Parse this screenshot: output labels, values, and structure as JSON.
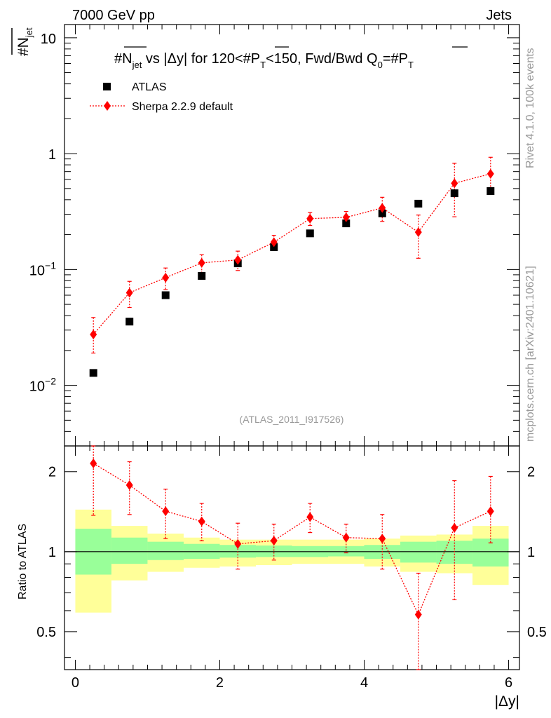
{
  "header": {
    "left": "7000 GeV pp",
    "right": "Jets"
  },
  "side_text": {
    "rivet": "Rivet 4.1.0,  100k events",
    "mcplots": "mcplots.cern.ch [arXiv:2401.10621]"
  },
  "colors": {
    "atlas": "#000000",
    "mc": "#ff0000",
    "band_inner": "#99ff99",
    "band_outer": "#ffff99"
  },
  "chart_data": [
    {
      "type": "scatter",
      "title": "#N_jet vs |Δy| for 120<#P_T<150, Fwd/Bwd Q0=#P_T",
      "title_parts": {
        "a": "#N",
        "a_sub": "jet",
        "b": " vs |Δy|  for 120<#P",
        "b_sub": "T",
        "c": "<150, Fwd/Bwd Q",
        "c_sub": "0",
        "d": "=#P",
        "d_sub": "T"
      },
      "ylabel": "#N_jet",
      "ylabel_parts": {
        "main": "#N",
        "sub": "jet"
      },
      "yscale": "log",
      "ylim": [
        0.003,
        13
      ],
      "xlim": [
        -0.15,
        6.15
      ],
      "y_ticks": [
        {
          "v": 0.01,
          "base": "10",
          "exp": "−2"
        },
        {
          "v": 0.1,
          "base": "10",
          "exp": "−1"
        },
        {
          "v": 1,
          "base": "1",
          "exp": ""
        },
        {
          "v": 10,
          "base": "10",
          "exp": ""
        }
      ],
      "watermark": "(ATLAS_2011_I917526)",
      "legend": {
        "placement": "top-left",
        "atlas": "ATLAS",
        "mc": "Sherpa 2.2.9 default"
      },
      "x": [
        0.25,
        0.75,
        1.25,
        1.75,
        2.25,
        2.75,
        3.25,
        3.75,
        4.25,
        4.75,
        5.25,
        5.75
      ],
      "bin_half_width": 0.25,
      "series": [
        {
          "name": "ATLAS",
          "values": [
            0.0128,
            0.0355,
            0.06,
            0.088,
            0.113,
            0.156,
            0.205,
            0.25,
            0.305,
            0.37,
            0.455,
            0.475
          ]
        },
        {
          "name": "Sherpa 2.2.9 default",
          "values": [
            0.0275,
            0.063,
            0.085,
            0.114,
            0.121,
            0.172,
            0.275,
            0.282,
            0.34,
            0.21,
            0.555,
            0.67
          ],
          "err_low": [
            0.0085,
            0.016,
            0.018,
            0.02,
            0.023,
            0.025,
            0.035,
            0.035,
            0.08,
            0.085,
            0.27,
            0.16
          ],
          "err_high": [
            0.011,
            0.016,
            0.018,
            0.02,
            0.023,
            0.025,
            0.035,
            0.035,
            0.08,
            0.085,
            0.27,
            0.26
          ]
        }
      ]
    },
    {
      "type": "scatter",
      "title": "",
      "ylabel": "Ratio to ATLAS",
      "xlabel": "|Δy|",
      "yscale": "log",
      "ylim": [
        0.36,
        2.5
      ],
      "xlim": [
        -0.15,
        6.15
      ],
      "x_ticks": [
        0,
        2,
        4,
        6
      ],
      "y_ticks": [
        0.5,
        1,
        2
      ],
      "bands": {
        "edges": [
          0,
          0.5,
          1,
          1.5,
          2,
          2.5,
          3,
          3.5,
          4,
          4.5,
          5,
          5.5,
          6
        ],
        "inner_low": [
          0.82,
          0.9,
          0.93,
          0.94,
          0.95,
          0.955,
          0.955,
          0.96,
          0.94,
          0.91,
          0.9,
          0.88
        ],
        "inner_high": [
          1.22,
          1.13,
          1.09,
          1.07,
          1.06,
          1.055,
          1.05,
          1.05,
          1.06,
          1.09,
          1.1,
          1.12
        ],
        "outer_low": [
          0.59,
          0.78,
          0.84,
          0.87,
          0.88,
          0.89,
          0.9,
          0.9,
          0.88,
          0.84,
          0.83,
          0.75
        ],
        "outer_high": [
          1.44,
          1.25,
          1.17,
          1.13,
          1.11,
          1.11,
          1.11,
          1.11,
          1.12,
          1.15,
          1.16,
          1.25
        ]
      },
      "x": [
        0.25,
        0.75,
        1.25,
        1.75,
        2.25,
        2.75,
        3.25,
        3.75,
        4.25,
        4.75,
        5.25,
        5.75
      ],
      "series": [
        {
          "name": "Sherpa 2.2.9 default",
          "values": [
            2.15,
            1.78,
            1.42,
            1.3,
            1.07,
            1.1,
            1.35,
            1.13,
            1.12,
            0.58,
            1.23,
            1.42
          ],
          "err_low": [
            0.78,
            0.4,
            0.3,
            0.2,
            0.21,
            0.17,
            0.17,
            0.14,
            0.26,
            0.25,
            0.57,
            0.34
          ],
          "err_high": [
            0.42,
            0.4,
            0.3,
            0.22,
            0.21,
            0.17,
            0.17,
            0.14,
            0.26,
            0.25,
            0.62,
            0.5
          ]
        }
      ]
    }
  ]
}
